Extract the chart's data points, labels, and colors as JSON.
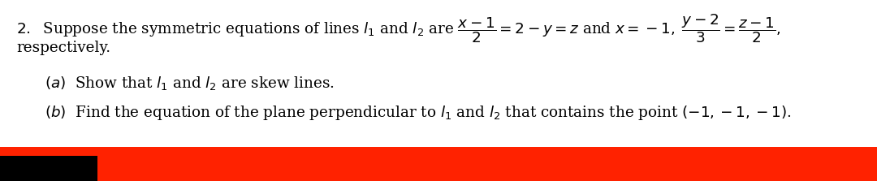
{
  "background_color": "#ffffff",
  "red_bar_color": "#ff2200",
  "black_bar_color": "#000000",
  "text_color": "#000000",
  "fig_width": 10.8,
  "fig_height": 2.23,
  "dpi": 100,
  "fontsize": 13.2
}
